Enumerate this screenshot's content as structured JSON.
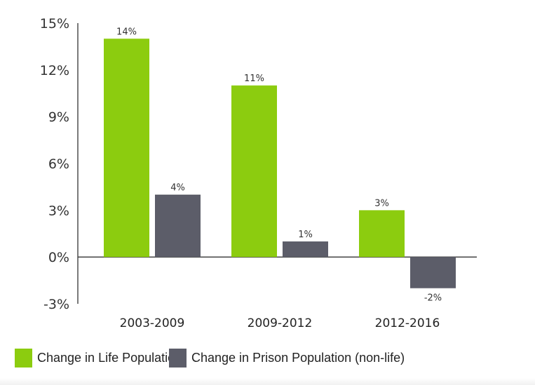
{
  "chart_data": {
    "type": "bar",
    "categories": [
      "2003-2009",
      "2009-2012",
      "2012-2016"
    ],
    "series": [
      {
        "name": "Change in Life Population",
        "values": [
          14,
          11,
          3
        ],
        "labels": [
          "14%",
          "11%",
          "3%"
        ],
        "color": "#8ccc0f"
      },
      {
        "name": "Change in Prison Population (non-life)",
        "values": [
          4,
          1,
          -2
        ],
        "labels": [
          "4%",
          "1%",
          "-2%"
        ],
        "color": "#5c5d69"
      }
    ],
    "ylim": [
      -3,
      15
    ],
    "yticks": [
      15,
      12,
      9,
      6,
      3,
      0,
      -3
    ],
    "ytick_labels": [
      "15%",
      "12%",
      "9%",
      "6%",
      "3%",
      "0%",
      "-3%"
    ],
    "grid": false,
    "legend_placement": "bottom",
    "title": "",
    "xlabel": "",
    "ylabel": ""
  }
}
